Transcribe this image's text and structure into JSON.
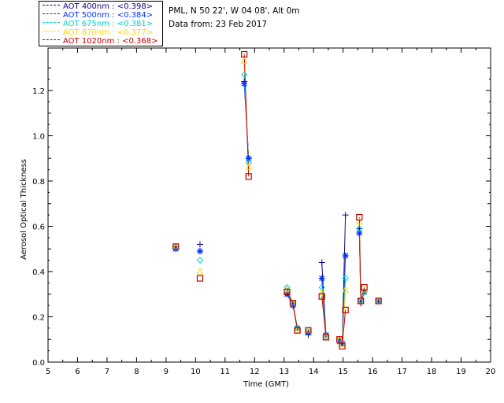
{
  "header": {
    "station": "PML, N 50 22', W 04 08', Alt 0m",
    "date_line": "Data from: 23 Feb 2017"
  },
  "legend": [
    {
      "label": "AOT  400nm : <0.398>",
      "color": "#1a0080"
    },
    {
      "label": "AOT  500nm : <0.384>",
      "color": "#0033ff"
    },
    {
      "label": "AOT  675nm : <0.381>",
      "color": "#00d2c8"
    },
    {
      "label": "AOT  870nm : <0.377>",
      "color": "#ffd800"
    },
    {
      "label": "AOT 1020nm : <0.368>",
      "color": "#c00000"
    }
  ],
  "chart_data": {
    "type": "line",
    "title": "",
    "xlabel": "Time (GMT)",
    "ylabel": "Aerosol Optical Thickness",
    "xlim": [
      5,
      20
    ],
    "ylim": [
      0.0,
      1.35
    ],
    "xticks": [
      5,
      6,
      7,
      8,
      9,
      10,
      11,
      12,
      13,
      14,
      15,
      16,
      17,
      18,
      19,
      20
    ],
    "yticks": [
      0.0,
      0.2,
      0.4,
      0.6,
      0.8,
      1.0,
      1.2
    ],
    "ytick_labels": [
      "0.0",
      "0.2",
      "0.4",
      "0.6",
      "0.8",
      "1.0",
      "1.2"
    ],
    "grid": false,
    "legend_position": "top-left",
    "x": [
      9.33,
      10.15,
      11.65,
      11.8,
      13.1,
      13.3,
      13.45,
      13.82,
      14.28,
      14.42,
      14.88,
      14.97,
      15.08,
      15.55,
      15.6,
      15.72,
      16.2
    ],
    "segments": [
      [
        2,
        3
      ],
      [
        4,
        5,
        6
      ],
      [
        8,
        9
      ],
      [
        10,
        11,
        12
      ],
      [
        13,
        14,
        15
      ]
    ],
    "series": [
      {
        "name": "AOT  400nm",
        "marker": "plus",
        "color": "#1a0080",
        "values": [
          0.51,
          0.52,
          1.24,
          0.9,
          0.31,
          0.26,
          0.15,
          0.12,
          0.44,
          0.12,
          0.1,
          0.09,
          0.65,
          0.59,
          0.26,
          0.31,
          0.27
        ]
      },
      {
        "name": "AOT  500nm",
        "marker": "star",
        "color": "#0033ff",
        "values": [
          0.5,
          0.49,
          1.23,
          0.9,
          0.3,
          0.25,
          0.15,
          0.13,
          0.37,
          0.12,
          0.09,
          0.08,
          0.47,
          0.57,
          0.27,
          0.31,
          0.27
        ]
      },
      {
        "name": "AOT  675nm",
        "marker": "diamond",
        "color": "#00d2c8",
        "values": [
          0.51,
          0.45,
          1.27,
          0.88,
          0.33,
          0.26,
          0.15,
          0.14,
          0.33,
          0.11,
          0.1,
          0.08,
          0.37,
          0.59,
          0.27,
          0.31,
          0.27
        ]
      },
      {
        "name": "AOT  870nm",
        "marker": "triangle",
        "color": "#ffd800",
        "values": [
          0.51,
          0.4,
          1.33,
          0.86,
          0.32,
          0.26,
          0.14,
          0.14,
          0.31,
          0.11,
          0.1,
          0.08,
          0.32,
          0.62,
          0.27,
          0.32,
          0.27
        ]
      },
      {
        "name": "AOT 1020nm",
        "marker": "square",
        "color": "#c00000",
        "values": [
          0.51,
          0.37,
          1.36,
          0.82,
          0.31,
          0.26,
          0.14,
          0.14,
          0.29,
          0.11,
          0.1,
          0.07,
          0.23,
          0.64,
          0.27,
          0.33,
          0.27
        ]
      }
    ]
  }
}
